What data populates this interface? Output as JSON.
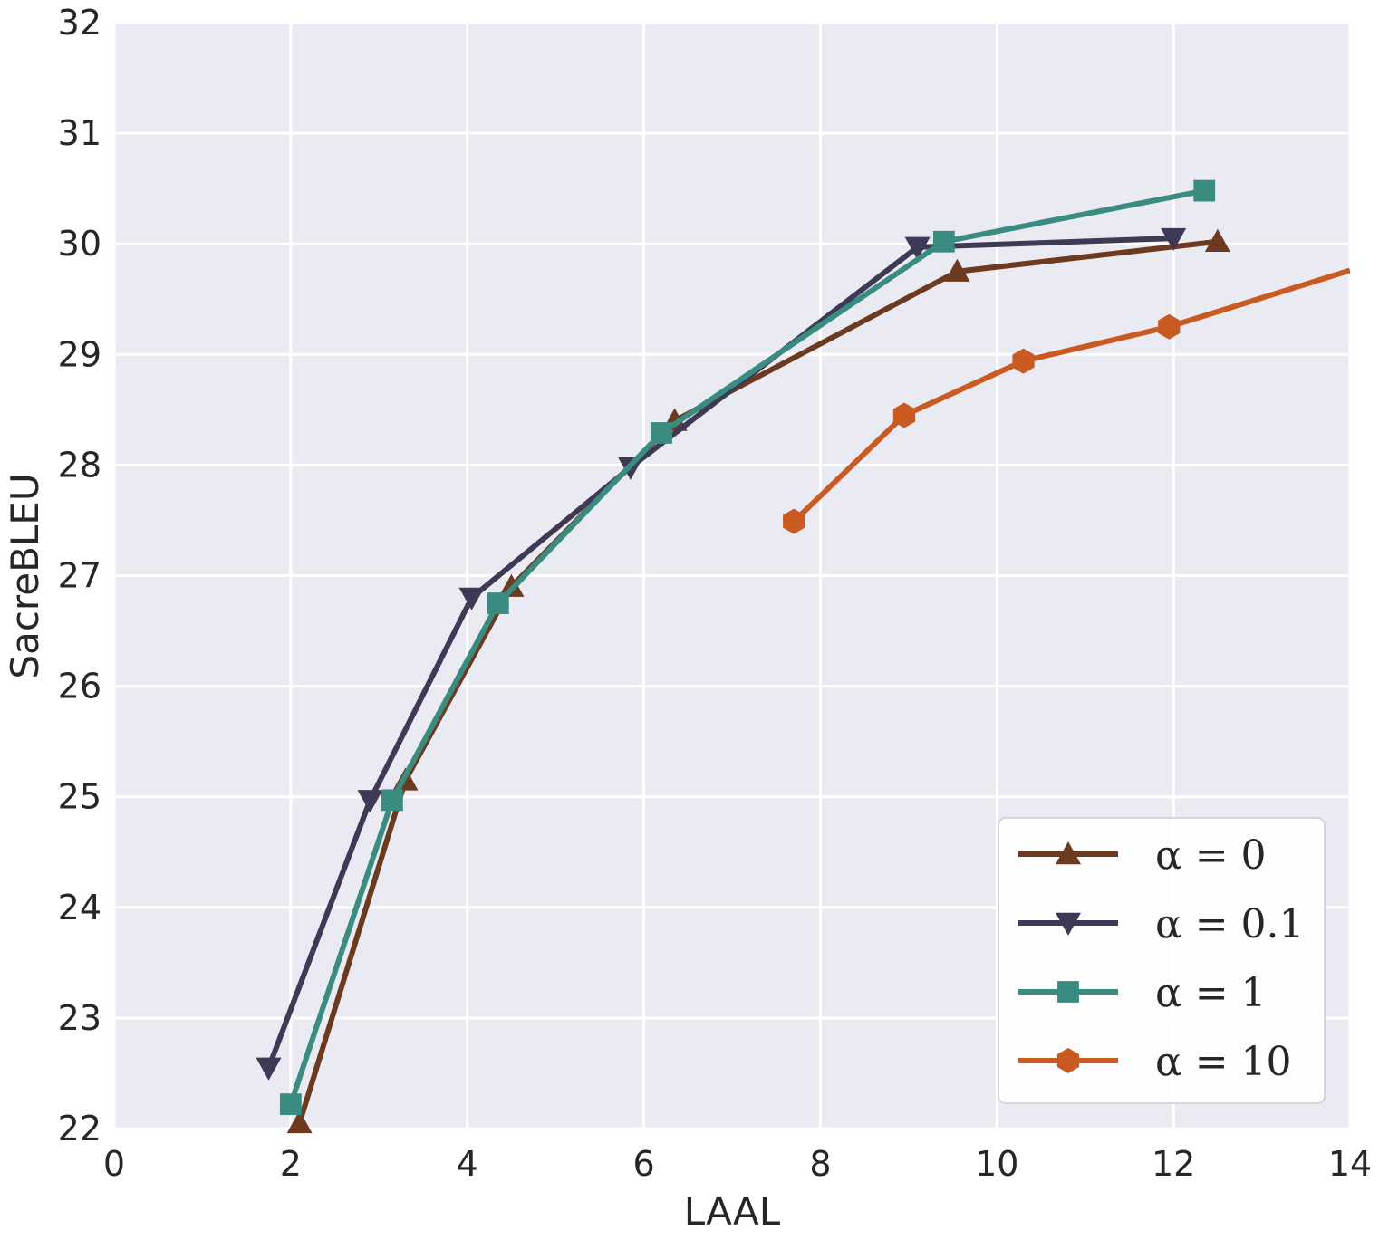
{
  "chart_data": {
    "type": "line",
    "title": "",
    "xlabel": "LAAL",
    "ylabel": "SacreBLEU",
    "xlim": [
      0,
      14
    ],
    "ylim": [
      22,
      32
    ],
    "xticks": [
      0,
      2,
      4,
      6,
      8,
      10,
      12,
      14
    ],
    "yticks": [
      22,
      23,
      24,
      25,
      26,
      27,
      28,
      29,
      30,
      31,
      32
    ],
    "grid": true,
    "legend_position": "bottom-right",
    "series": [
      {
        "name": "α = 0",
        "color": "#6b3a1f",
        "marker": "triangle-up",
        "x": [
          2.1,
          3.3,
          4.5,
          6.35,
          9.55,
          12.5
        ],
        "y": [
          22.05,
          25.15,
          26.9,
          28.4,
          29.75,
          30.02
        ]
      },
      {
        "name": "α = 0.1",
        "color": "#3e3a55",
        "marker": "triangle-down",
        "x": [
          1.75,
          2.9,
          4.05,
          5.85,
          9.1,
          12.0
        ],
        "y": [
          22.55,
          24.97,
          26.8,
          27.98,
          29.97,
          30.05
        ]
      },
      {
        "name": "α = 1",
        "color": "#3a8c80",
        "marker": "square",
        "x": [
          2.0,
          3.15,
          4.35,
          6.2,
          9.4,
          12.35
        ],
        "y": [
          22.22,
          24.97,
          26.75,
          28.29,
          30.02,
          30.48
        ]
      },
      {
        "name": "α = 10",
        "color": "#c85a22",
        "marker": "hexagon",
        "x": [
          7.7,
          8.95,
          10.3,
          11.95,
          14.0
        ],
        "y": [
          27.49,
          28.45,
          28.94,
          29.25,
          29.76
        ]
      }
    ]
  }
}
